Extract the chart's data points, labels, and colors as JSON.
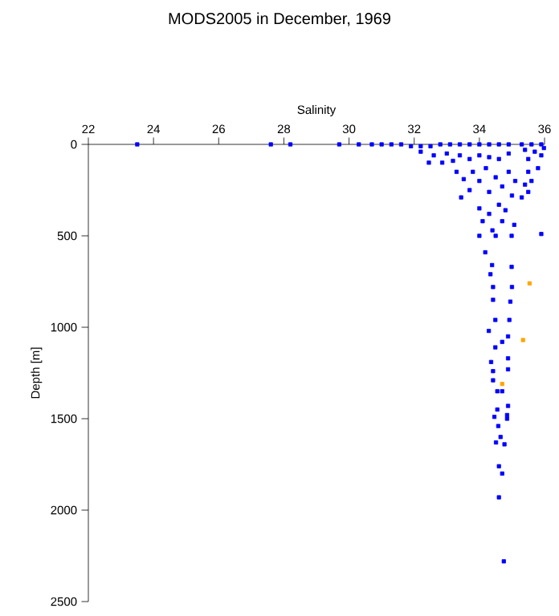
{
  "chart_data": {
    "type": "scatter",
    "title": "MODS2005 in December, 1969",
    "xlabel": "Salinity",
    "ylabel": "Depth [m]",
    "xlim": [
      22,
      36
    ],
    "xticks": [
      22,
      24,
      26,
      28,
      30,
      32,
      34,
      36
    ],
    "ylim": [
      2500,
      0
    ],
    "yticks": [
      0,
      500,
      1000,
      1500,
      2000,
      2500
    ],
    "grid": false,
    "marker": "square",
    "series": [
      {
        "color": "#0000ff",
        "x": [
          23.5,
          27.6,
          28.2,
          29.7,
          30.3,
          30.7,
          31.0,
          31.3,
          31.6,
          31.9,
          32.2,
          32.5,
          32.8,
          33.1,
          33.4,
          33.7,
          34.0,
          34.3,
          34.6,
          34.9,
          35.3,
          35.6,
          35.9,
          32.2,
          32.45,
          32.6,
          32.86,
          33.0,
          33.19,
          33.4,
          33.7,
          34.0,
          34.3,
          34.6,
          34.9,
          33.3,
          33.52,
          33.44,
          33.7,
          33.8,
          34.0,
          34.2,
          34.3,
          34.5,
          34.7,
          34.9,
          35.0,
          35.1,
          34.0,
          34.0,
          34.1,
          34.3,
          34.4,
          34.6,
          34.7,
          34.8,
          34.99,
          35.07,
          34.5,
          35.4,
          35.5,
          35.7,
          35.9,
          35.5,
          35.8,
          35.4,
          35.6,
          35.3,
          35.5,
          35.98,
          35.9,
          34.18,
          34.39,
          34.99,
          34.34,
          34.42,
          35.0,
          34.42,
          34.95,
          34.49,
          34.92,
          34.29,
          34.88,
          34.7,
          34.49,
          34.36,
          34.88,
          34.88,
          34.42,
          34.42,
          34.55,
          34.7,
          34.88,
          34.55,
          34.46,
          34.85,
          34.85,
          34.58,
          34.65,
          34.51,
          34.77,
          34.6,
          34.7,
          34.6,
          34.75
        ],
        "values": [
          0,
          0,
          0,
          0,
          0,
          0,
          0,
          0,
          0,
          10,
          10,
          10,
          0,
          0,
          0,
          0,
          0,
          0,
          0,
          0,
          0,
          0,
          0,
          40,
          100,
          60,
          100,
          50,
          90,
          60,
          80,
          60,
          70,
          80,
          50,
          150,
          190,
          290,
          250,
          150,
          200,
          130,
          260,
          180,
          230,
          150,
          280,
          200,
          350,
          500,
          420,
          380,
          470,
          330,
          420,
          360,
          500,
          440,
          500,
          30,
          80,
          40,
          60,
          150,
          130,
          220,
          200,
          290,
          260,
          20,
          490,
          590,
          660,
          670,
          710,
          780,
          780,
          850,
          860,
          960,
          960,
          1020,
          1050,
          1080,
          1110,
          1190,
          1170,
          1230,
          1240,
          1290,
          1350,
          1350,
          1430,
          1450,
          1490,
          1480,
          1500,
          1540,
          1600,
          1630,
          1640,
          1760,
          1800,
          1930,
          2280
        ]
      },
      {
        "color": "#ffa500",
        "x": [
          35.54,
          35.34,
          34.7
        ],
        "values": [
          760,
          1070,
          1310
        ]
      }
    ]
  }
}
